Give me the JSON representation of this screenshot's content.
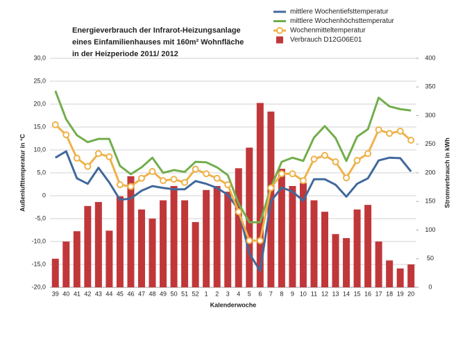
{
  "chart_data": {
    "type": "combo",
    "title": [
      "Energieverbrauch der Infrarot-Heizungsanlage",
      "eines Einfamilienhauses mit 160m² Wohnfläche",
      "in der Heizperiode 2011/ 2012"
    ],
    "xlabel": "Kalenderwoche",
    "ylabel": "Außenlufttemperatur in °C",
    "y2label": "Stromverbrauch in kWh",
    "categories": [
      "39",
      "40",
      "41",
      "42",
      "43",
      "44",
      "45",
      "46",
      "47",
      "48",
      "49",
      "50",
      "51",
      "52",
      "1",
      "2",
      "3",
      "4",
      "5",
      "6",
      "7",
      "8",
      "9",
      "10",
      "11",
      "12",
      "13",
      "14",
      "15",
      "16",
      "17",
      "18",
      "19",
      "20"
    ],
    "ylim": [
      -20,
      30
    ],
    "yticks": [
      {
        "value": -20,
        "label": "-20,0"
      },
      {
        "value": -15,
        "label": "-15,0"
      },
      {
        "value": -10,
        "label": "-10,0"
      },
      {
        "value": -5,
        "label": "-5,0"
      },
      0,
      {
        "value": 5,
        "label": "5,0"
      },
      {
        "value": 10,
        "label": "10,0"
      },
      {
        "value": 15,
        "label": "15,0"
      },
      {
        "value": 20,
        "label": "20,0"
      },
      {
        "value": 25,
        "label": "25,0"
      },
      {
        "value": 30,
        "label": "30,0"
      }
    ],
    "y2lim": [
      0,
      400
    ],
    "y2ticks": [
      0,
      50,
      100,
      150,
      200,
      250,
      300,
      350,
      400
    ],
    "grid": true,
    "legend": "top-right",
    "series": [
      {
        "name": "mittlere Wochentiefsttemperatur",
        "type": "line",
        "color": "#40699c",
        "values": [
          8.3,
          9.7,
          3.8,
          2.6,
          6.1,
          2.9,
          -0.9,
          -0.6,
          1.1,
          2.1,
          1.7,
          1.4,
          1.4,
          3.2,
          2.6,
          1.7,
          0.2,
          -3,
          -12.6,
          -16.4,
          -1.2,
          1.8,
          0.9,
          -1.1,
          3.6,
          3.6,
          2.4,
          -0.2,
          2.6,
          3.8,
          7.7,
          8.3,
          8.2,
          5.3
        ]
      },
      {
        "name": "mittlere Wochenhöchsttemperatur",
        "type": "line",
        "color": "#72ad4c",
        "values": [
          22.9,
          16.7,
          13.2,
          11.7,
          12.4,
          12.4,
          6.5,
          4.7,
          6.2,
          8.3,
          5,
          5.6,
          5.2,
          7.4,
          7.3,
          6.2,
          4.5,
          -1.7,
          -5.8,
          -5.8,
          1.8,
          7.4,
          8.3,
          7.6,
          12.7,
          15.2,
          12.6,
          7.6,
          12.9,
          14.5,
          21.4,
          19.5,
          18.9,
          18.6
        ]
      },
      {
        "name": "Wochenmitteltemperatur",
        "type": "line-marker",
        "color": "#eeb24a",
        "values": [
          15.5,
          13.3,
          8.2,
          6.4,
          9.2,
          8.5,
          2.4,
          2,
          3.8,
          5.3,
          3.3,
          3.6,
          2.9,
          5.8,
          4.8,
          3.8,
          2.4,
          -3.5,
          -9.8,
          -9.8,
          1.7,
          4.8,
          4.8,
          3.3,
          8,
          8.8,
          7.4,
          3.9,
          7.7,
          9.2,
          14.4,
          13.6,
          14.1,
          12.1
        ]
      },
      {
        "name": "Verbrauch D12G06E01",
        "type": "bar",
        "axis": "y2",
        "color": "#c0373a",
        "values": [
          50,
          80,
          98,
          142,
          149,
          99,
          159,
          194,
          136,
          120,
          152,
          177,
          152,
          114,
          170,
          177,
          167,
          208,
          244,
          322,
          307,
          207,
          177,
          182,
          152,
          132,
          93,
          86,
          136,
          144,
          80,
          47,
          33,
          40
        ]
      }
    ]
  }
}
